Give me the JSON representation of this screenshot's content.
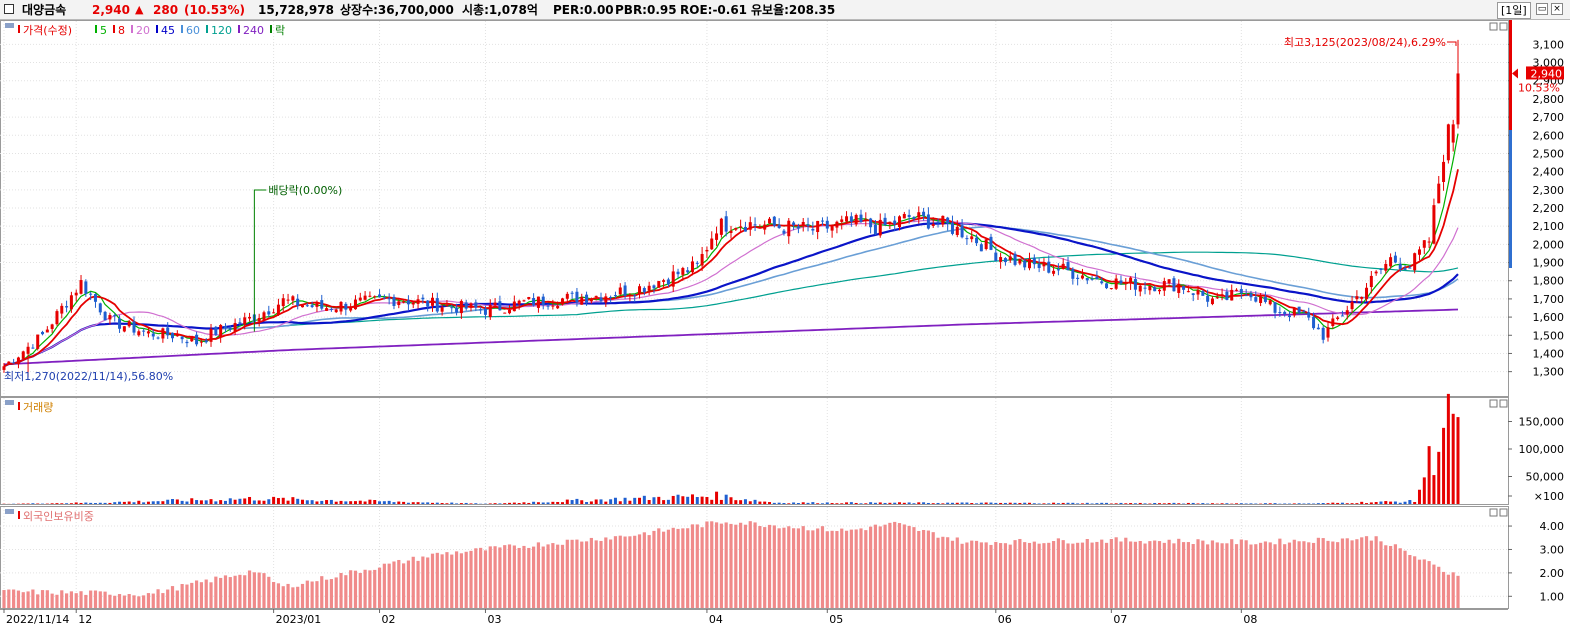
{
  "header": {
    "stock_name": "대양금속",
    "price": "2,940",
    "change_arrow": "▲",
    "change": "280",
    "change_pct": "(10.53%)",
    "volume": "15,728,978",
    "listed_shares": "상장수:36,700,000",
    "market_cap": "시총:1,078억",
    "per": "PER:0.00",
    "pbr": "PBR:0.95",
    "roe": "ROE:-0.61",
    "reserve_ratio": "유보율:208.35",
    "period": "[1일]"
  },
  "price_panel": {
    "legend": [
      {
        "label": "가격(수정)",
        "color": "#e60000"
      },
      {
        "label": "5",
        "color": "#00b000"
      },
      {
        "label": "8",
        "color": "#e60000"
      },
      {
        "label": "20",
        "color": "#d070d0"
      },
      {
        "label": "45",
        "color": "#0000c8"
      },
      {
        "label": "60",
        "color": "#4a90d9"
      },
      {
        "label": "120",
        "color": "#00a090"
      },
      {
        "label": "240",
        "color": "#8020c0"
      },
      {
        "label": "락",
        "color": "#008000"
      }
    ],
    "high_annotation": "최고3,125(2023/08/24),6.29%",
    "low_annotation": "최저1,270(2022/11/14),56.80%",
    "dividend_annotation": "배당락(0.00%)",
    "current_price_tag": "2,940",
    "current_pct_tag": "10.53%",
    "y_ticks": [
      "3,100",
      "3,000",
      "2,900",
      "2,800",
      "2,700",
      "2,600",
      "2,500",
      "2,400",
      "2,300",
      "2,200",
      "2,100",
      "2,000",
      "1,900",
      "1,800",
      "1,700",
      "1,600",
      "1,500",
      "1,400",
      "1,300"
    ]
  },
  "volume_panel": {
    "label": "거래량",
    "y_ticks": [
      "150,000",
      "100,000",
      "50,000",
      "×100"
    ]
  },
  "foreign_panel": {
    "label": "외국인보유비중",
    "y_ticks": [
      "4.00",
      "3.00",
      "2.00",
      "1.00"
    ]
  },
  "x_axis": {
    "labels": [
      "2022/11/14",
      "12",
      "2023/01",
      "02",
      "03",
      "04",
      "05",
      "06",
      "07",
      "08"
    ]
  },
  "colors": {
    "up": "#e60000",
    "down": "#1f5fd0",
    "grid": "#e2e2e2",
    "foreign_bar": "#f08a8a"
  },
  "chart_data": {
    "type": "candlestick",
    "start_date": "2022/11/14",
    "end_date": "2023/08/24",
    "price_high": {
      "value": 3125,
      "date": "2023/08/24"
    },
    "price_low": {
      "value": 1270,
      "date": "2022/11/14"
    },
    "last_close": 2940,
    "price_anchors": [
      [
        0,
        1330
      ],
      [
        8,
        1500
      ],
      [
        12,
        1650
      ],
      [
        16,
        1790
      ],
      [
        22,
        1580
      ],
      [
        30,
        1510
      ],
      [
        36,
        1500
      ],
      [
        40,
        1460
      ],
      [
        44,
        1520
      ],
      [
        52,
        1600
      ],
      [
        58,
        1690
      ],
      [
        66,
        1650
      ],
      [
        74,
        1680
      ],
      [
        82,
        1700
      ],
      [
        92,
        1660
      ],
      [
        100,
        1640
      ],
      [
        108,
        1680
      ],
      [
        116,
        1700
      ],
      [
        124,
        1720
      ],
      [
        132,
        1760
      ],
      [
        138,
        1820
      ],
      [
        144,
        1880
      ],
      [
        148,
        2100
      ],
      [
        152,
        2120
      ],
      [
        160,
        2100
      ],
      [
        168,
        2080
      ],
      [
        176,
        2120
      ],
      [
        182,
        2090
      ],
      [
        188,
        2150
      ],
      [
        194,
        2120
      ],
      [
        200,
        2060
      ],
      [
        206,
        1950
      ],
      [
        212,
        1890
      ],
      [
        220,
        1860
      ],
      [
        228,
        1800
      ],
      [
        236,
        1780
      ],
      [
        244,
        1780
      ],
      [
        252,
        1680
      ],
      [
        258,
        1750
      ],
      [
        264,
        1640
      ],
      [
        270,
        1610
      ],
      [
        274,
        1500
      ],
      [
        280,
        1680
      ],
      [
        284,
        1800
      ],
      [
        288,
        1920
      ],
      [
        292,
        1880
      ],
      [
        296,
        2020
      ],
      [
        300,
        2660
      ],
      [
        302,
        2940
      ]
    ],
    "ma_240_anchors": [
      [
        0,
        1340
      ],
      [
        60,
        1420
      ],
      [
        120,
        1480
      ],
      [
        200,
        1560
      ],
      [
        300,
        1640
      ]
    ],
    "volume_x100": [
      [
        0,
        3
      ],
      [
        15,
        20
      ],
      [
        18,
        22
      ],
      [
        52,
        100
      ],
      [
        100,
        5
      ],
      [
        148,
        150
      ],
      [
        160,
        25
      ],
      [
        272,
        10
      ],
      [
        285,
        35
      ],
      [
        293,
        50
      ],
      [
        300,
        1700
      ],
      [
        302,
        1580
      ]
    ],
    "foreign_pct": [
      [
        0,
        1.2
      ],
      [
        30,
        1.1
      ],
      [
        52,
        2.1
      ],
      [
        58,
        1.4
      ],
      [
        90,
        2.8
      ],
      [
        130,
        3.6
      ],
      [
        150,
        4.2
      ],
      [
        175,
        3.8
      ],
      [
        185,
        4.1
      ],
      [
        200,
        3.3
      ],
      [
        230,
        3.4
      ],
      [
        260,
        3.3
      ],
      [
        285,
        3.5
      ],
      [
        300,
        2.0
      ],
      [
        302,
        2.0
      ]
    ]
  }
}
